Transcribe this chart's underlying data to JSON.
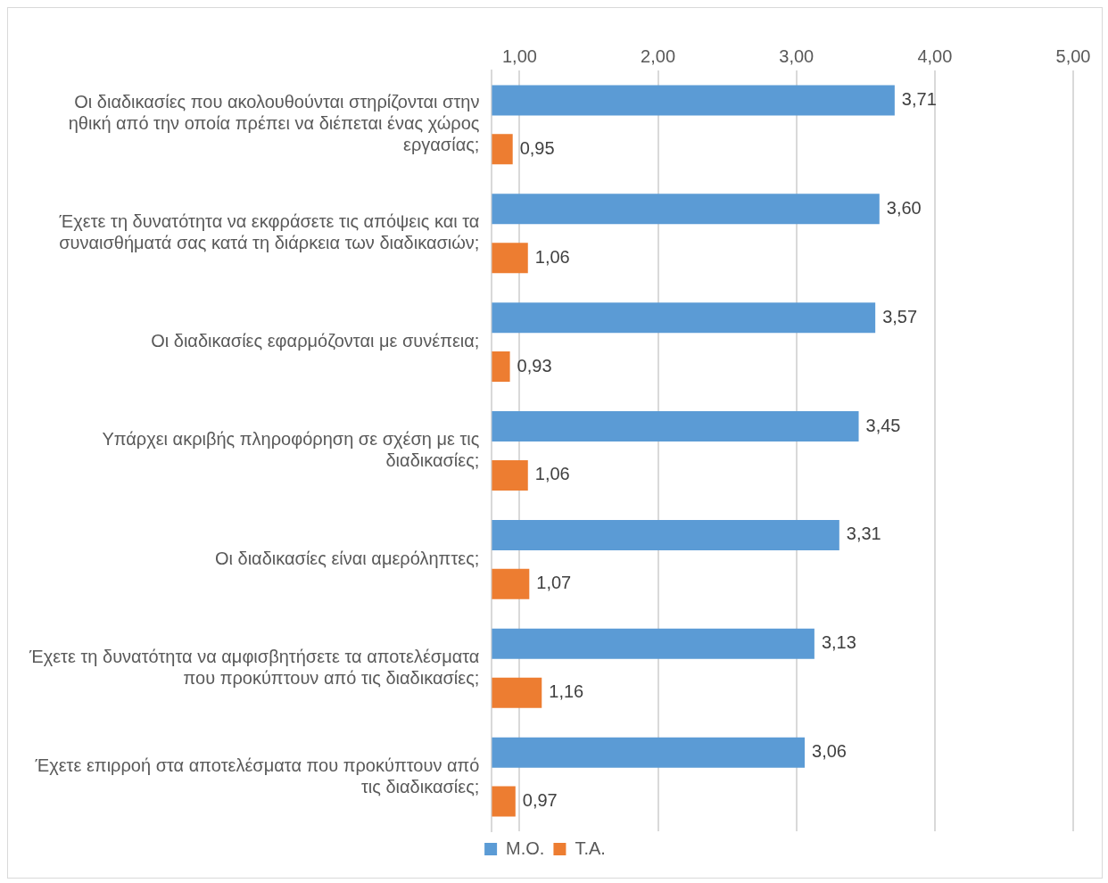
{
  "chart_data": {
    "type": "bar",
    "orientation": "horizontal",
    "categories": [
      "Οι διαδικασίες που ακολουθούνται στηρίζονται στην ηθική από την οποία πρέπει να διέπεται ένας χώρος εργασίας;",
      "Έχετε τη δυνατότητα να εκφράσετε τις απόψεις και τα συναισθήματά σας κατά τη διάρκεια των διαδικασιών;",
      "Οι διαδικασίες εφαρμόζονται με συνέπεια;",
      "Υπάρχει ακριβής πληροφόρηση σε σχέση με τις διαδικασίες;",
      "Οι διαδικασίες είναι αμερόληπτες;",
      "Έχετε τη δυνατότητα να αμφισβητήσετε τα αποτελέσματα που προκύπτουν από τις διαδικασίες;",
      "Έχετε επιρροή στα αποτελέσματα που προκύπτουν από τις διαδικασίες;"
    ],
    "series": [
      {
        "name": "Μ.Ο.",
        "color": "#5b9bd5",
        "values": [
          3.71,
          3.6,
          3.57,
          3.45,
          3.31,
          3.13,
          3.06
        ],
        "value_labels": [
          "3,71",
          "3,60",
          "3,57",
          "3,45",
          "3,31",
          "3,13",
          "3,06"
        ]
      },
      {
        "name": "Τ.Α.",
        "color": "#ed7d31",
        "values": [
          0.95,
          1.06,
          0.93,
          1.06,
          1.07,
          1.16,
          0.97
        ],
        "value_labels": [
          "0,95",
          "1,06",
          "0,93",
          "1,06",
          "1,07",
          "1,16",
          "0,97"
        ]
      }
    ],
    "xlim": [
      0.8,
      5
    ],
    "xticks": [
      {
        "value": 1,
        "label": "1,00"
      },
      {
        "value": 2,
        "label": "2,00"
      },
      {
        "value": 3,
        "label": "3,00"
      },
      {
        "value": 4,
        "label": "4,00"
      },
      {
        "value": 5,
        "label": "5,00"
      }
    ],
    "grid": "x",
    "legend": "bottom"
  }
}
